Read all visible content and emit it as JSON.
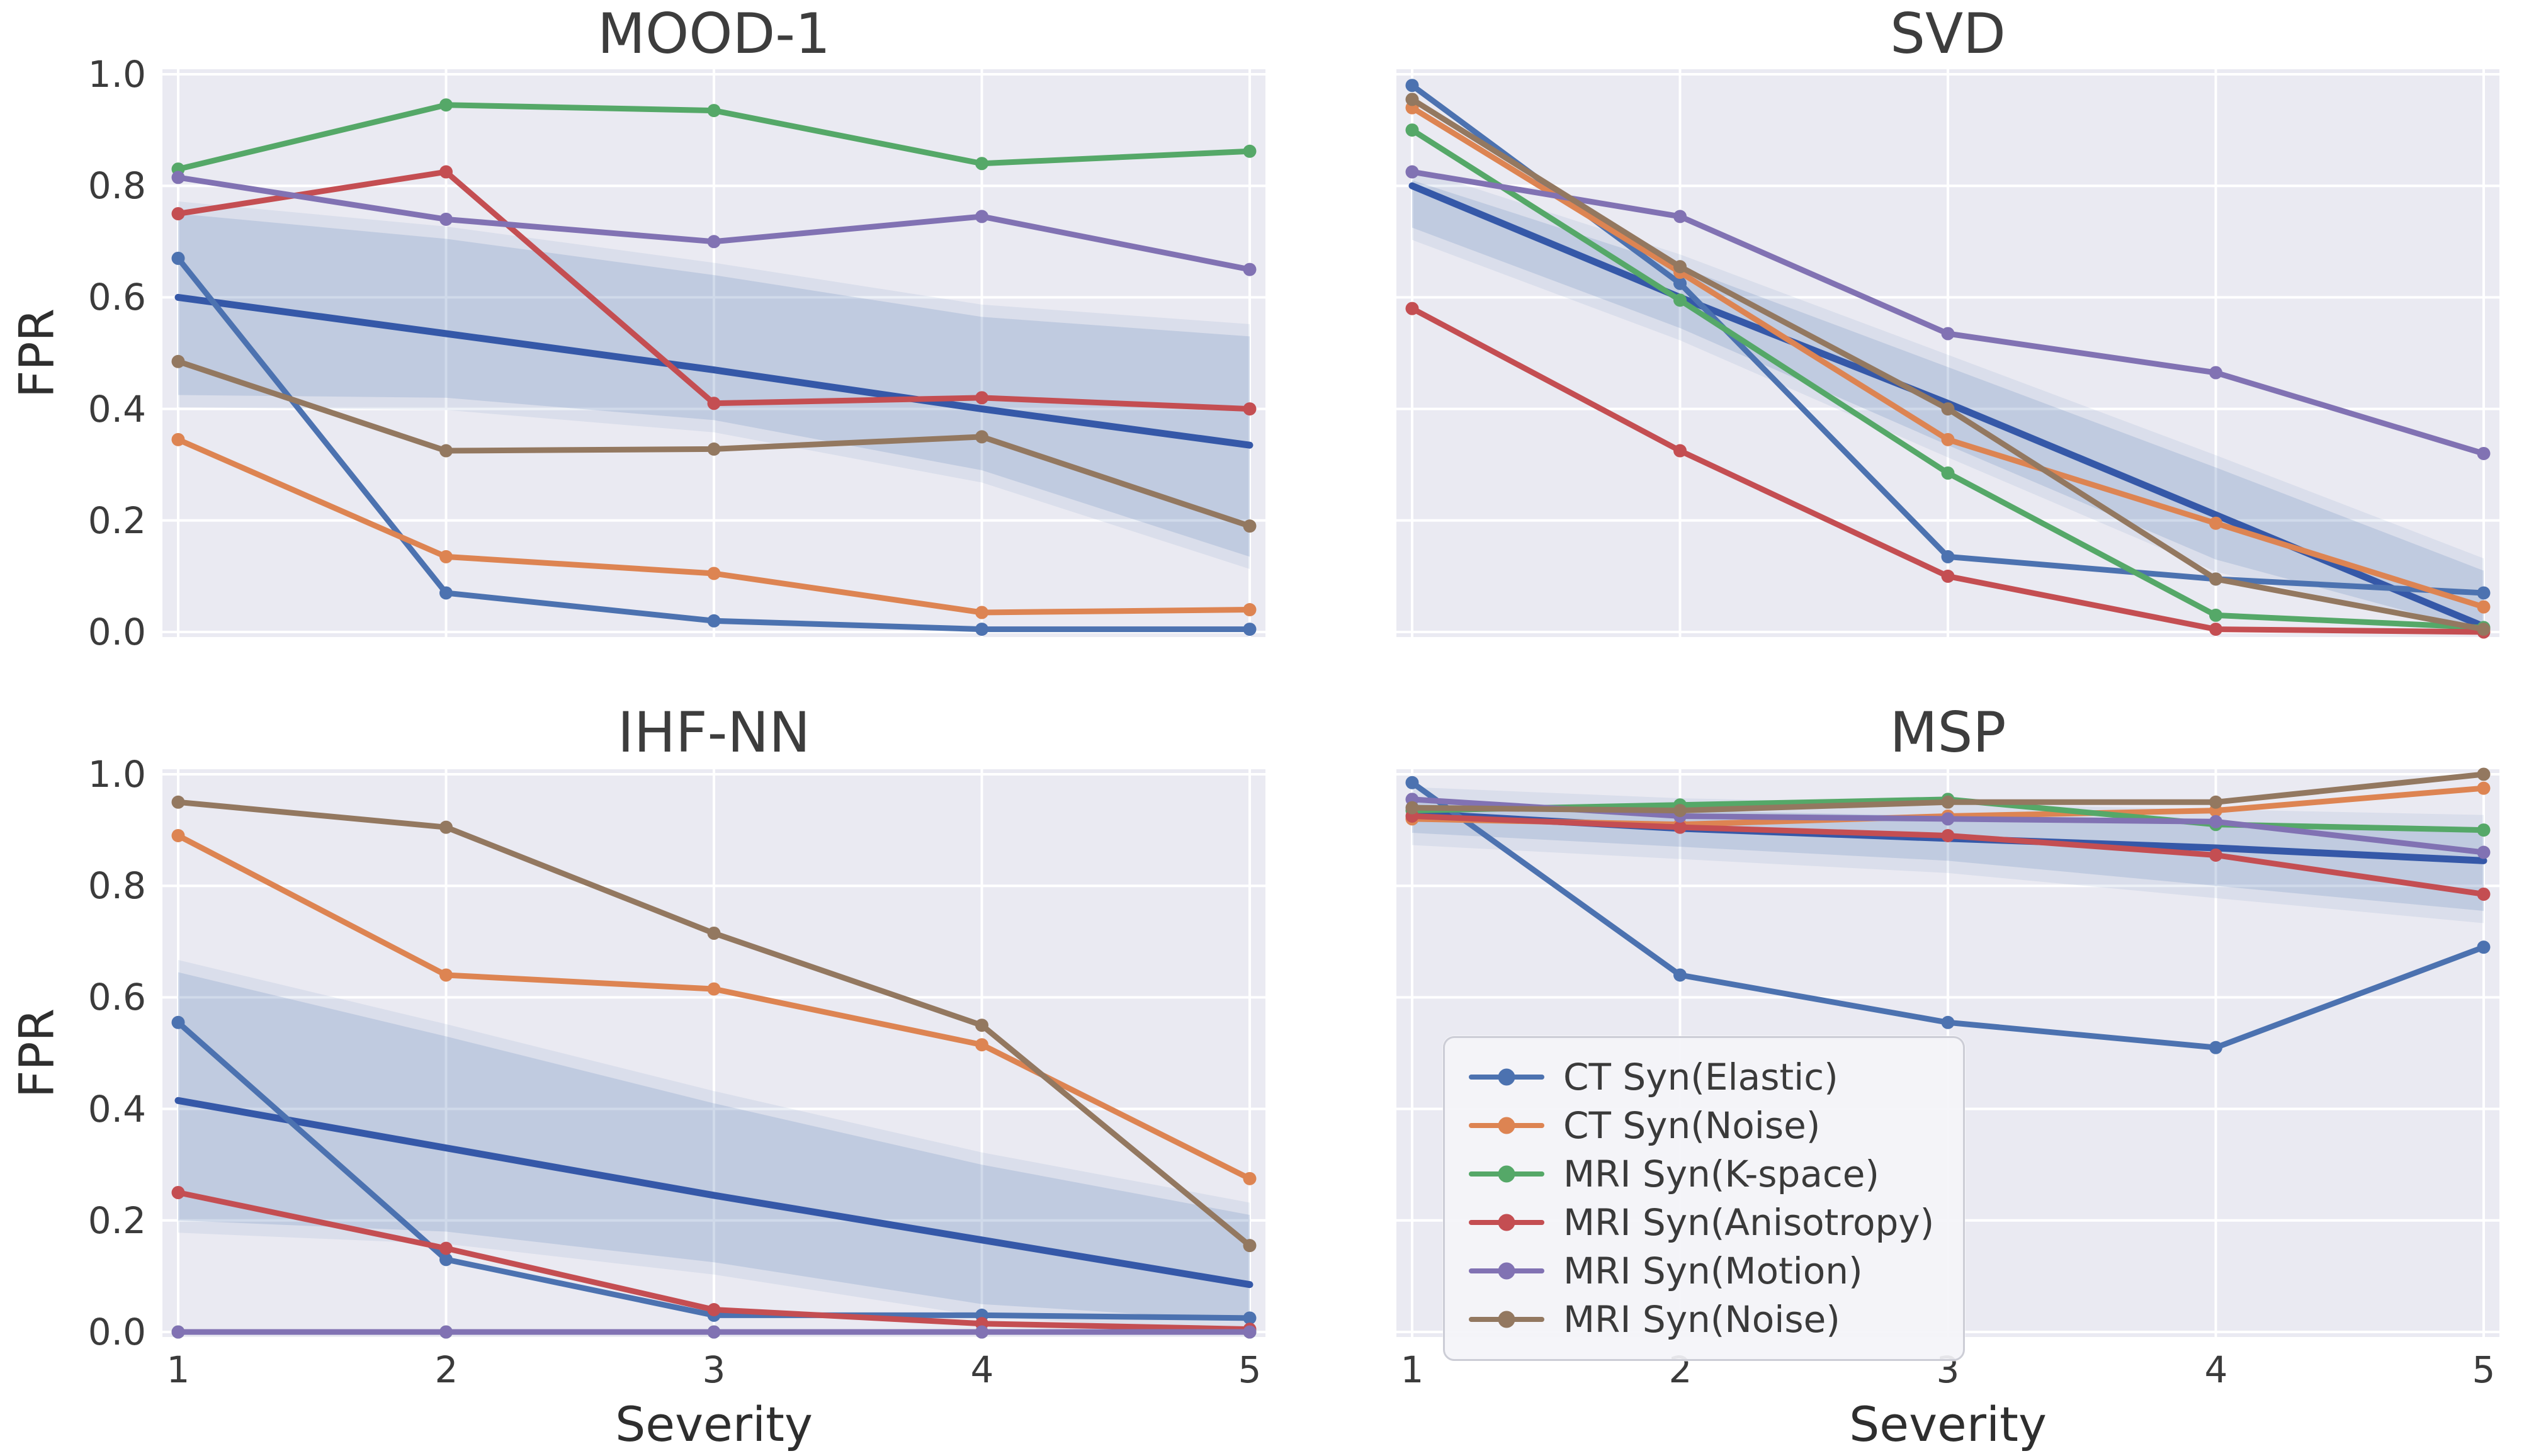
{
  "figure": {
    "ylabel": "FPR",
    "xlabel": "Severity",
    "y_ticks": [
      "0.0",
      "0.2",
      "0.4",
      "0.6",
      "0.8",
      "1.0"
    ],
    "x_ticks": [
      "1",
      "2",
      "3",
      "4",
      "5"
    ]
  },
  "colors": {
    "blue": "#4C72B0",
    "orange": "#DD8452",
    "green": "#55A868",
    "red": "#C44E52",
    "purple": "#8172B3",
    "brown": "#937860",
    "trend_line": "#3558A8",
    "ci_band": "#4C72B0",
    "axes_background": "#eaeaf2",
    "grid": "#ffffff",
    "text": "#3b3b3b"
  },
  "legend": {
    "position": "lower-left-inside-MSP-subplot",
    "items": [
      {
        "label": "CT Syn(Elastic)",
        "color": "#4C72B0"
      },
      {
        "label": "CT Syn(Noise)",
        "color": "#DD8452"
      },
      {
        "label": "MRI Syn(K-space)",
        "color": "#55A868"
      },
      {
        "label": "MRI Syn(Anisotropy)",
        "color": "#C44E52"
      },
      {
        "label": "MRI Syn(Motion)",
        "color": "#8172B3"
      },
      {
        "label": "MRI Syn(Noise)",
        "color": "#937860"
      }
    ]
  },
  "chart_data": [
    {
      "type": "line",
      "title": "MOOD-1",
      "x": [
        1,
        2,
        3,
        4,
        5
      ],
      "xlabel": "",
      "ylabel": "FPR",
      "ylim": [
        0.0,
        1.0
      ],
      "grid": true,
      "series": [
        {
          "name": "CT Syn(Elastic)",
          "color": "#4C72B0",
          "values": [
            0.67,
            0.07,
            0.02,
            0.005,
            0.005
          ]
        },
        {
          "name": "CT Syn(Noise)",
          "color": "#DD8452",
          "values": [
            0.345,
            0.135,
            0.105,
            0.035,
            0.04
          ]
        },
        {
          "name": "MRI Syn(K-space)",
          "color": "#55A868",
          "values": [
            0.83,
            0.945,
            0.935,
            0.84,
            0.862
          ]
        },
        {
          "name": "MRI Syn(Anisotropy)",
          "color": "#C44E52",
          "values": [
            0.75,
            0.825,
            0.41,
            0.42,
            0.4
          ]
        },
        {
          "name": "MRI Syn(Motion)",
          "color": "#8172B3",
          "values": [
            0.815,
            0.74,
            0.7,
            0.745,
            0.65
          ]
        },
        {
          "name": "MRI Syn(Noise)",
          "color": "#937860",
          "values": [
            0.485,
            0.325,
            0.328,
            0.35,
            0.19
          ]
        }
      ],
      "trend": {
        "color": "#3558A8",
        "values": [
          0.6,
          0.535,
          0.47,
          0.4,
          0.335
        ],
        "band_upper": [
          0.75,
          0.705,
          0.64,
          0.565,
          0.53
        ],
        "band_lower": [
          0.425,
          0.42,
          0.38,
          0.29,
          0.135
        ]
      }
    },
    {
      "type": "line",
      "title": "SVD",
      "x": [
        1,
        2,
        3,
        4,
        5
      ],
      "xlabel": "",
      "ylabel": "",
      "ylim": [
        0.0,
        1.0
      ],
      "grid": true,
      "series": [
        {
          "name": "CT Syn(Elastic)",
          "color": "#4C72B0",
          "values": [
            0.98,
            0.625,
            0.135,
            0.095,
            0.07
          ]
        },
        {
          "name": "CT Syn(Noise)",
          "color": "#DD8452",
          "values": [
            0.94,
            0.645,
            0.345,
            0.195,
            0.045
          ]
        },
        {
          "name": "MRI Syn(K-space)",
          "color": "#55A868",
          "values": [
            0.9,
            0.595,
            0.285,
            0.03,
            0.008
          ]
        },
        {
          "name": "MRI Syn(Anisotropy)",
          "color": "#C44E52",
          "values": [
            0.58,
            0.325,
            0.1,
            0.005,
            0.0
          ]
        },
        {
          "name": "MRI Syn(Motion)",
          "color": "#8172B3",
          "values": [
            0.825,
            0.745,
            0.535,
            0.465,
            0.32
          ]
        },
        {
          "name": "MRI Syn(Noise)",
          "color": "#937860",
          "values": [
            0.955,
            0.655,
            0.4,
            0.095,
            0.005
          ]
        }
      ],
      "trend": {
        "color": "#3558A8",
        "values": [
          0.8,
          0.6,
          0.41,
          0.21,
          0.01
        ],
        "band_upper": [
          0.81,
          0.655,
          0.475,
          0.295,
          0.11
        ],
        "band_lower": [
          0.725,
          0.545,
          0.335,
          0.13,
          0.0
        ]
      }
    },
    {
      "type": "line",
      "title": "IHF-NN",
      "x": [
        1,
        2,
        3,
        4,
        5
      ],
      "xlabel": "Severity",
      "ylabel": "FPR",
      "ylim": [
        0.0,
        1.0
      ],
      "grid": true,
      "series": [
        {
          "name": "CT Syn(Elastic)",
          "color": "#4C72B0",
          "values": [
            0.555,
            0.13,
            0.03,
            0.03,
            0.025
          ]
        },
        {
          "name": "CT Syn(Noise)",
          "color": "#DD8452",
          "values": [
            0.89,
            0.64,
            0.615,
            0.515,
            0.275
          ]
        },
        {
          "name": "MRI Syn(K-space)",
          "color": "#55A868",
          "values": [
            0.0,
            0.0,
            0.0,
            0.0,
            0.0
          ]
        },
        {
          "name": "MRI Syn(Anisotropy)",
          "color": "#C44E52",
          "values": [
            0.25,
            0.15,
            0.04,
            0.015,
            0.005
          ]
        },
        {
          "name": "MRI Syn(Motion)",
          "color": "#8172B3",
          "values": [
            0.0,
            0.0,
            0.0,
            0.0,
            0.0
          ]
        },
        {
          "name": "MRI Syn(Noise)",
          "color": "#937860",
          "values": [
            0.95,
            0.905,
            0.715,
            0.55,
            0.155
          ]
        }
      ],
      "trend": {
        "color": "#3558A8",
        "values": [
          0.415,
          0.33,
          0.245,
          0.165,
          0.085
        ],
        "band_upper": [
          0.645,
          0.53,
          0.41,
          0.3,
          0.21
        ],
        "band_lower": [
          0.2,
          0.18,
          0.125,
          0.05,
          0.02
        ]
      }
    },
    {
      "type": "line",
      "title": "MSP",
      "x": [
        1,
        2,
        3,
        4,
        5
      ],
      "xlabel": "Severity",
      "ylabel": "",
      "ylim": [
        0.0,
        1.0
      ],
      "grid": true,
      "series": [
        {
          "name": "CT Syn(Elastic)",
          "color": "#4C72B0",
          "values": [
            0.985,
            0.64,
            0.555,
            0.51,
            0.69
          ]
        },
        {
          "name": "CT Syn(Noise)",
          "color": "#DD8452",
          "values": [
            0.92,
            0.91,
            0.925,
            0.935,
            0.975
          ]
        },
        {
          "name": "MRI Syn(K-space)",
          "color": "#55A868",
          "values": [
            0.935,
            0.945,
            0.955,
            0.91,
            0.9
          ]
        },
        {
          "name": "MRI Syn(Anisotropy)",
          "color": "#C44E52",
          "values": [
            0.925,
            0.905,
            0.89,
            0.855,
            0.785
          ]
        },
        {
          "name": "MRI Syn(Motion)",
          "color": "#8172B3",
          "values": [
            0.955,
            0.925,
            0.92,
            0.915,
            0.86
          ]
        },
        {
          "name": "MRI Syn(Noise)",
          "color": "#937860",
          "values": [
            0.94,
            0.935,
            0.95,
            0.95,
            1.0
          ]
        }
      ],
      "trend": {
        "color": "#3558A8",
        "values": [
          0.93,
          0.903,
          0.885,
          0.868,
          0.845
        ],
        "band_upper": [
          0.955,
          0.935,
          0.925,
          0.915,
          0.905
        ],
        "band_lower": [
          0.895,
          0.87,
          0.845,
          0.8,
          0.755
        ]
      }
    }
  ]
}
